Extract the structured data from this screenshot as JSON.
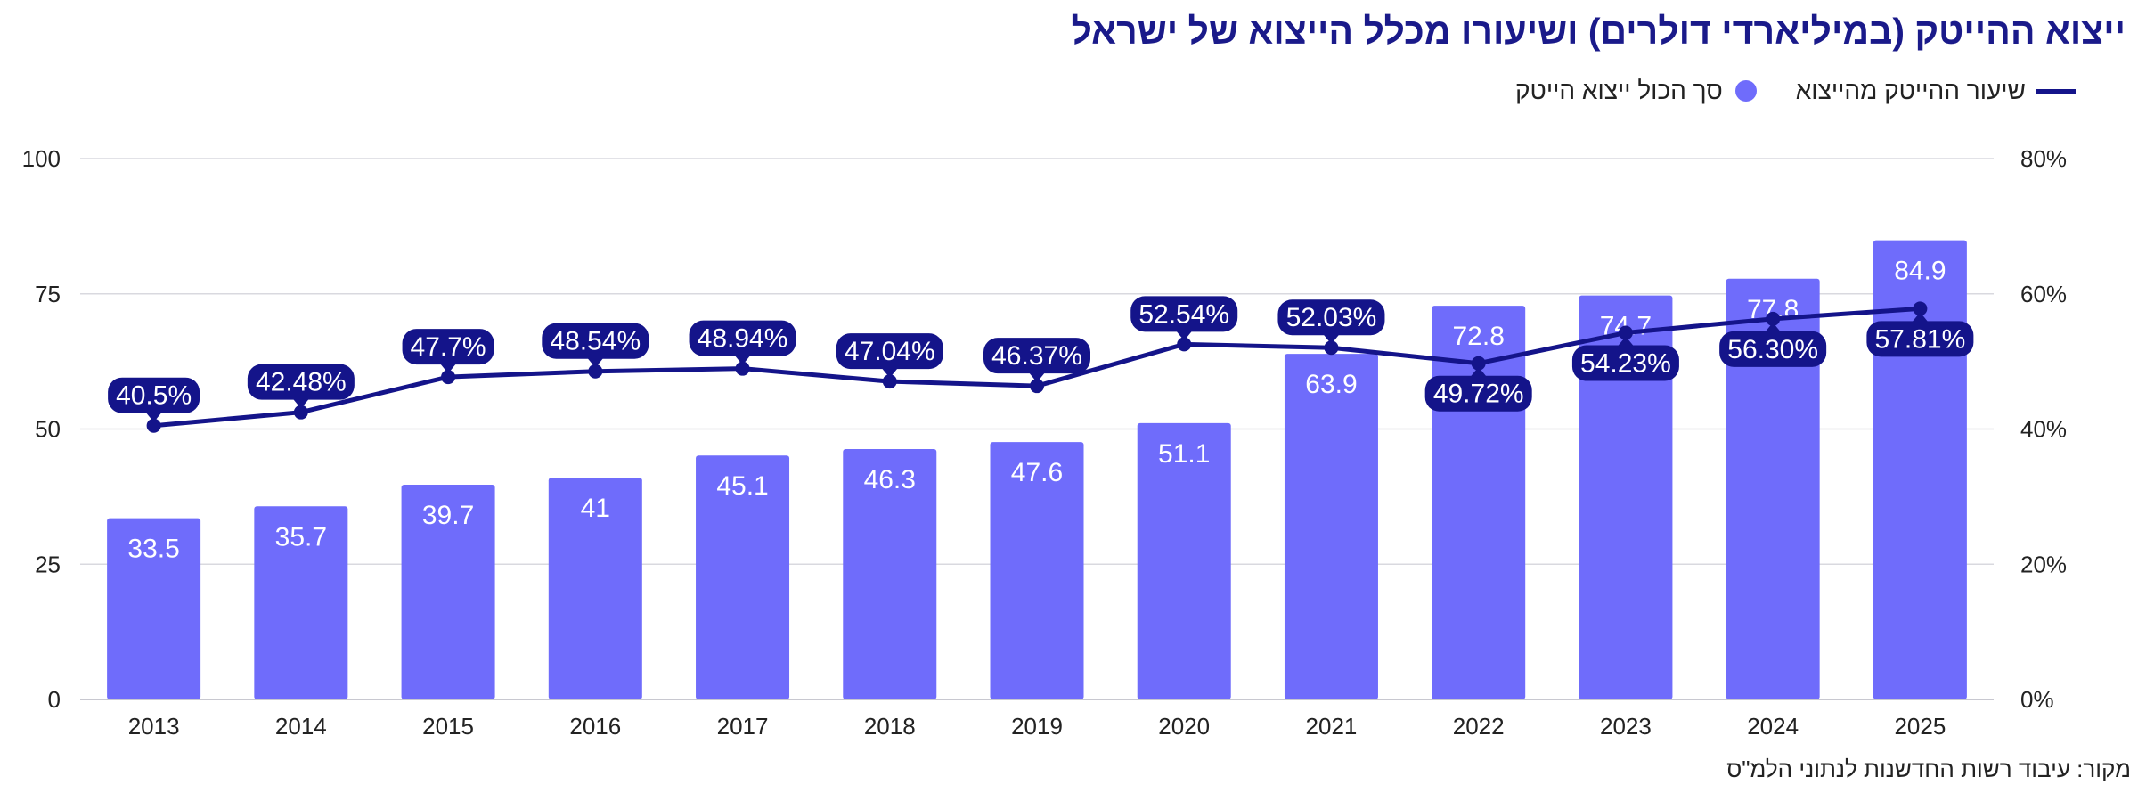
{
  "chart_data": {
    "type": "bar+line",
    "title": "ייצוא ההייטק (במיליארדי דולרים) ושיעורו מכלל הייצוא של ישראל",
    "categories": [
      "2013",
      "2014",
      "2015",
      "2016",
      "2017",
      "2018",
      "2019",
      "2020",
      "2021",
      "2022",
      "2023",
      "2024",
      "2025"
    ],
    "series": [
      {
        "name": "סך הכול ייצוא הייטק",
        "kind": "bar",
        "axis": "left",
        "values": [
          33.5,
          35.7,
          39.7,
          41,
          45.1,
          46.3,
          47.6,
          51.1,
          63.9,
          72.8,
          74.7,
          77.8,
          84.9
        ],
        "labels": [
          "33.5",
          "35.7",
          "39.7",
          "41",
          "45.1",
          "46.3",
          "47.6",
          "51.1",
          "63.9",
          "72.8",
          "74.7",
          "77.8",
          "84.9"
        ]
      },
      {
        "name": "שיעור ההייטק מהייצוא",
        "kind": "line",
        "axis": "right",
        "values": [
          40.5,
          42.48,
          47.7,
          48.54,
          48.94,
          47.04,
          46.37,
          52.54,
          52.03,
          49.72,
          54.23,
          56.3,
          57.81
        ],
        "labels": [
          "40.5%",
          "42.48%",
          "47.7%",
          "48.54%",
          "48.94%",
          "47.04%",
          "46.37%",
          "52.54%",
          "52.03%",
          "49.72%",
          "54.23%",
          "56.30%",
          "57.81%"
        ],
        "label_positions": [
          "above",
          "above",
          "above",
          "above",
          "above",
          "above",
          "above",
          "above",
          "above",
          "below",
          "below",
          "below",
          "below"
        ]
      }
    ],
    "y_left": {
      "range": [
        0,
        100
      ],
      "ticks": [
        0,
        25,
        50,
        75,
        100
      ],
      "tick_labels": [
        "0",
        "25",
        "50",
        "75",
        "100"
      ]
    },
    "y_right": {
      "range": [
        0,
        80
      ],
      "ticks": [
        0,
        20,
        40,
        60,
        80
      ],
      "tick_labels": [
        "0%",
        "20%",
        "40%",
        "60%",
        "80%"
      ]
    },
    "grid": true,
    "legend": "top-right",
    "source": "מקור: עיבוד רשות החדשנות לנתוני הלמ\"ס"
  },
  "colors": {
    "bar": "#6f6cfb",
    "line": "#14148a",
    "title": "#1a1a8a",
    "grid": "#d9d9df",
    "text": "#222222"
  }
}
